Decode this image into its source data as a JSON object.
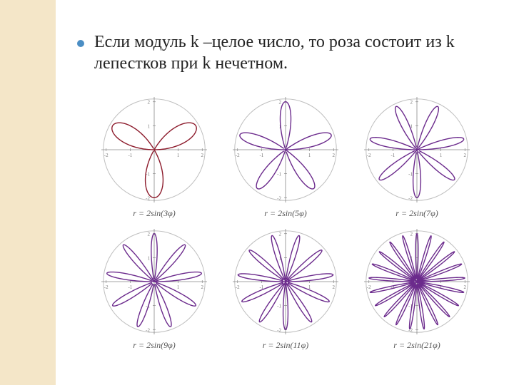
{
  "slide": {
    "left_band_color": "#f4e6c8",
    "background_color": "#ffffff",
    "bullet_color": "#4b8ec4",
    "text_color": "#222222",
    "text": "Если модуль k –целое число, то роза состоит из k лепестков при k нечетном.",
    "text_fontsize": 24
  },
  "roses": {
    "amplitude": 2,
    "axis_color": "#888888",
    "circle_color": "#bfbfbf",
    "tick_color": "#888888",
    "tick_label_color": "#777777",
    "tick_fontsize": 7,
    "caption_fontsize": 12,
    "caption_color": "#555555",
    "charts": [
      {
        "k": 3,
        "petal_color": "#8c1a2b",
        "caption": "r = 2sin(3φ)"
      },
      {
        "k": 5,
        "petal_color": "#6b2a8c",
        "caption": "r = 2sin(5φ)"
      },
      {
        "k": 7,
        "petal_color": "#6b2a8c",
        "caption": "r = 2sin(7φ)"
      },
      {
        "k": 9,
        "petal_color": "#6b2a8c",
        "caption": "r = 2sin(9φ)"
      },
      {
        "k": 11,
        "petal_color": "#6b2a8c",
        "caption": "r = 2sin(11φ)"
      },
      {
        "k": 21,
        "petal_color": "#6b2a8c",
        "caption": "r = 2sin(21φ)"
      }
    ],
    "axis_range": 2.2,
    "tick_values": [
      -2,
      -1,
      1,
      2
    ]
  }
}
